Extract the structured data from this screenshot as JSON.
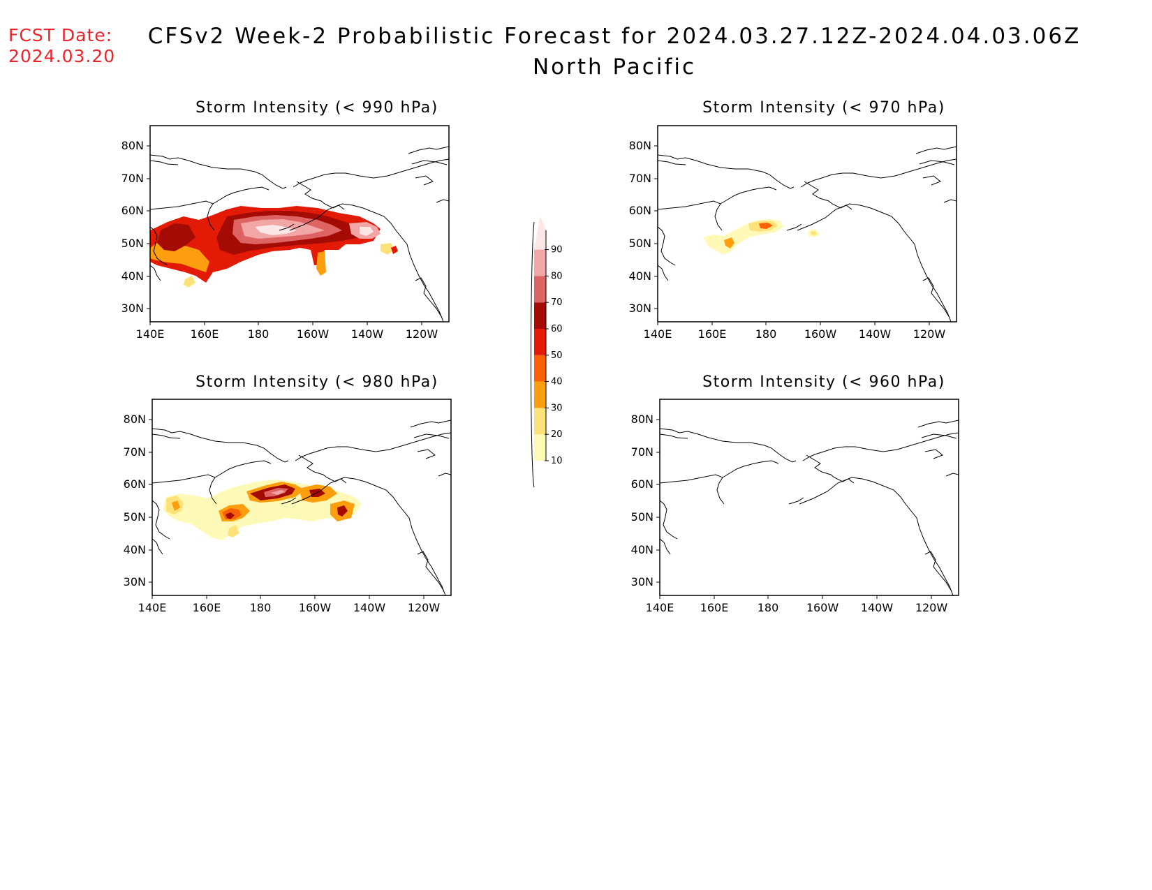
{
  "header": {
    "fcst_label": "FCST Date:",
    "fcst_date": "2024.03.20",
    "title_line1": "CFSv2 Week-2 Probabilistic Forecast for 2024.03.27.12Z-2024.04.03.06Z",
    "title_line2": "North Pacific"
  },
  "axes": {
    "lat_labels": [
      "80N",
      "70N",
      "60N",
      "50N",
      "40N",
      "30N"
    ],
    "lon_labels": [
      "140E",
      "160E",
      "180",
      "160W",
      "140W",
      "120W"
    ]
  },
  "panels": [
    {
      "id": "p990",
      "title": "Storm Intensity (< 990 hPa)"
    },
    {
      "id": "p970",
      "title": "Storm Intensity (< 970 hPa)"
    },
    {
      "id": "p980",
      "title": "Storm Intensity (< 980 hPa)"
    },
    {
      "id": "p960",
      "title": "Storm Intensity (< 960 hPa)"
    }
  ],
  "colorbar": {
    "levels": [
      "10",
      "20",
      "30",
      "40",
      "50",
      "60",
      "70",
      "80",
      "90"
    ],
    "colors": [
      "#fff9b8",
      "#fde27a",
      "#fc9e0e",
      "#fb6004",
      "#e31a05",
      "#a50b05",
      "#de6464",
      "#f2a6a6",
      "#fde6e6"
    ]
  }
}
